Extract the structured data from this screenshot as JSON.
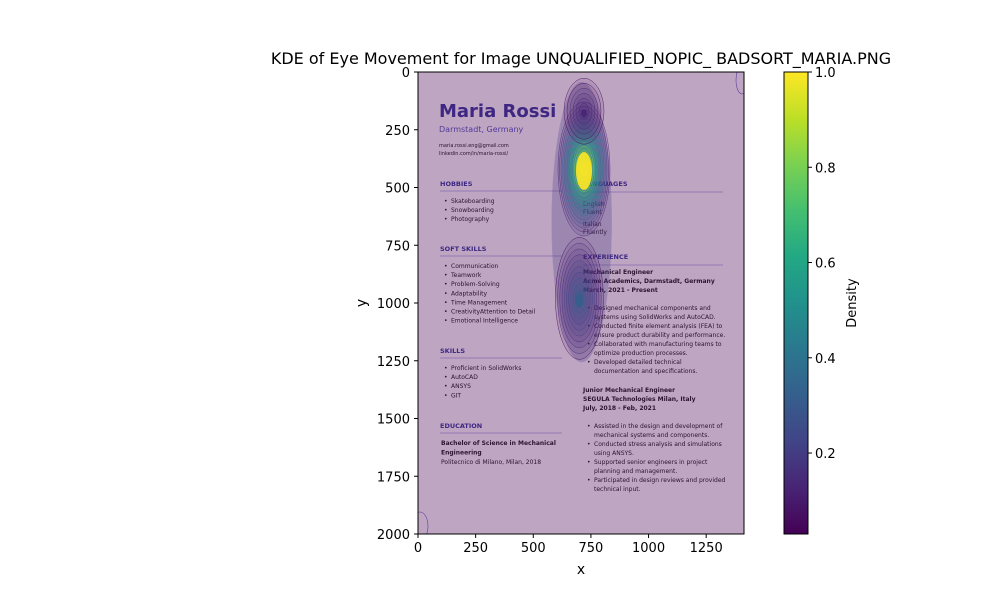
{
  "chart_data": {
    "type": "heatmap",
    "title": "KDE of Eye Movement for Image UNQUALIFIED_NOPIC_ BADSORT_MARIA.PNG",
    "xlabel": "x",
    "ylabel": "y",
    "xlim": [
      0,
      1414
    ],
    "ylim": [
      2000,
      0
    ],
    "x_ticks": [
      0,
      250,
      500,
      750,
      1000,
      1250
    ],
    "y_ticks": [
      0,
      250,
      500,
      750,
      1000,
      1250,
      1500,
      1750,
      2000
    ],
    "colorbar": {
      "label": "Density",
      "colormap": "viridis",
      "range": [
        0.03,
        1.0
      ],
      "ticks": [
        0.2,
        0.4,
        0.6,
        0.8,
        1.0
      ]
    },
    "density_peaks": [
      {
        "x": 720,
        "y": 420,
        "relative_density": 1.0
      },
      {
        "x": 700,
        "y": 980,
        "relative_density": 0.32
      },
      {
        "x": 720,
        "y": 170,
        "relative_density": 0.12
      }
    ],
    "overlay_opacity": 0.35,
    "background_color": "#440154"
  },
  "resume": {
    "name": "Maria Rossi",
    "location": "Darmstadt, Germany",
    "email": "maria.rossi.eng@gmail.com",
    "linkedin": "linkedin.com/in/maria-rossi/",
    "left": [
      {
        "heading": "HOBBIES",
        "items": [
          "Skateboarding",
          "Snowboarding",
          "Photography"
        ]
      },
      {
        "heading": "SOFT SKILLS",
        "items": [
          "Communication",
          "Teamwork",
          "Problem-Solving",
          "Adaptability",
          "Time Management",
          "CreativityAttention to Detail",
          "Emotional Intelligence"
        ]
      },
      {
        "heading": "SKILLS",
        "items": [
          "Proficient in SolidWorks",
          "AutoCAD",
          "ANSYS",
          "GIT"
        ]
      },
      {
        "heading": "EDUCATION",
        "lines": [
          "Bachelor of Science in Mechanical",
          "Engineering",
          "Politecnico di Milano, Milan, 2018"
        ]
      }
    ],
    "languages": {
      "heading": "LANGUAGES",
      "entries": [
        {
          "language": "English",
          "level": "Fluent"
        },
        {
          "language": "Italian",
          "level": "Fluently"
        }
      ]
    },
    "experience": {
      "heading": "EXPERIENCE",
      "jobs": [
        {
          "title": "Mechanical Engineer",
          "company": "Acme Academics, Darmstadt, Germany",
          "dates": "March, 2021 - Present",
          "bullets": [
            [
              "Designed mechanical components and",
              "systems using SolidWorks and AutoCAD."
            ],
            [
              "Conducted finite element analysis (FEA) to",
              "ensure product durability and performance."
            ],
            [
              "Collaborated with manufacturing teams to",
              "optimize production processes."
            ],
            [
              "Developed detailed technical",
              "documentation and specifications."
            ]
          ]
        },
        {
          "title": "Junior Mechanical Engineer",
          "company": "SEGULA Technologies Milan, Italy",
          "dates": "July, 2018 - Feb, 2021",
          "bullets": [
            [
              "Assisted in the design and development of",
              "mechanical systems and components."
            ],
            [
              "Conducted stress analysis and simulations",
              "using ANSYS."
            ],
            [
              "Supported senior engineers in project",
              "planning and management."
            ],
            [
              "Participated in design reviews and provided",
              "technical input."
            ]
          ]
        }
      ]
    }
  }
}
